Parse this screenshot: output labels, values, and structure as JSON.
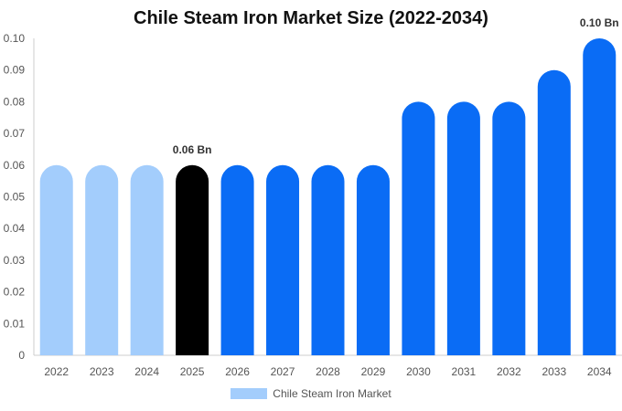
{
  "chart_data": {
    "type": "bar",
    "title": "Chile Steam Iron Market Size (2022-2034)",
    "categories": [
      "2022",
      "2023",
      "2024",
      "2025",
      "2026",
      "2027",
      "2028",
      "2029",
      "2030",
      "2031",
      "2032",
      "2033",
      "2034"
    ],
    "series": [
      {
        "name": "Chile Steam Iron Market",
        "values": [
          0.06,
          0.06,
          0.06,
          0.06,
          0.06,
          0.06,
          0.06,
          0.06,
          0.08,
          0.08,
          0.08,
          0.09,
          0.1
        ]
      }
    ],
    "bar_colors": [
      "#a3cdfc",
      "#a3cdfc",
      "#a3cdfc",
      "#000000",
      "#0a6cf5",
      "#0a6cf5",
      "#0a6cf5",
      "#0a6cf5",
      "#0a6cf5",
      "#0a6cf5",
      "#0a6cf5",
      "#0a6cf5",
      "#0a6cf5"
    ],
    "data_labels": [
      {
        "category": "2025",
        "text": "0.06 Bn"
      },
      {
        "category": "2034",
        "text": "0.10 Bn"
      }
    ],
    "yticks": [
      "0",
      "0.01",
      "0.02",
      "0.03",
      "0.04",
      "0.05",
      "0.06",
      "0.07",
      "0.08",
      "0.09",
      "0.10"
    ],
    "ylim": [
      0,
      0.1
    ],
    "xlabel": "",
    "ylabel": "",
    "legend_position": "bottom-center",
    "grid": false
  },
  "legend": {
    "label": "Chile Steam Iron Market",
    "color": "#a3cdfc"
  }
}
